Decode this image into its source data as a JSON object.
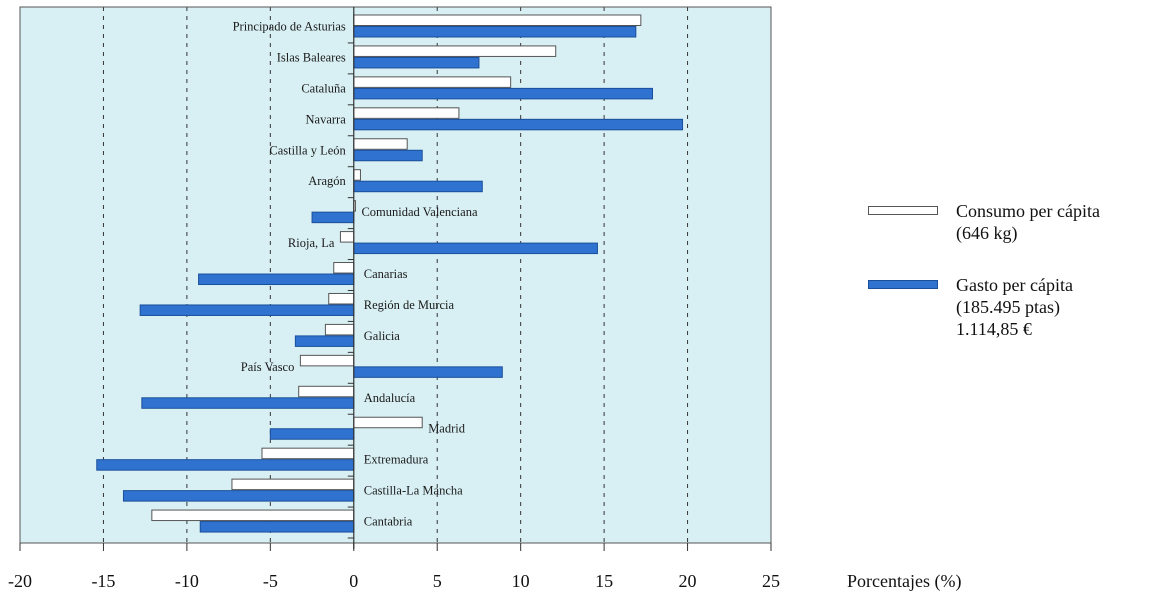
{
  "chart_data": {
    "type": "bar",
    "orientation": "horizontal",
    "categories": [
      "Principado de Asturias",
      "Islas Baleares",
      "Cataluña",
      "Navarra",
      "Castilla y León",
      "Aragón",
      "Comunidad Valenciana",
      "Rioja, La",
      "Canarias",
      "Región de Murcia",
      "Galicia",
      "País Vasco",
      "Andalucía",
      "Madrid",
      "Extremadura",
      "Castilla-La Mancha",
      "Cantabria"
    ],
    "series": [
      {
        "name": "Consumo per cápita (646 kg)",
        "values": [
          17.2,
          12.1,
          9.4,
          6.3,
          3.2,
          0.4,
          0.1,
          -0.8,
          -1.2,
          -1.5,
          -1.7,
          -3.2,
          -3.3,
          4.1,
          -5.5,
          -7.3,
          -12.1
        ]
      },
      {
        "name": "Gasto per cápita (185.495 ptas) 1.114,85 €",
        "values": [
          16.9,
          7.5,
          17.9,
          19.7,
          4.1,
          7.7,
          -2.5,
          14.6,
          -9.3,
          -12.8,
          -3.5,
          8.9,
          -12.7,
          -5.0,
          -15.4,
          -13.8,
          -9.2
        ]
      }
    ],
    "xlim": [
      -20,
      25
    ],
    "xticks": [
      "-20",
      "-15",
      "-10",
      "-5",
      "0",
      "5",
      "10",
      "15",
      "20",
      "25"
    ],
    "xlabel": "Porcentajes (%)",
    "grid": "vertical dashed",
    "legend_position": "right",
    "colors": {
      "background": "#d8f0f4",
      "consumo": "#ffffff",
      "gasto": "#2f72cf",
      "grid": "#333333"
    }
  },
  "legend": {
    "consumo_line1": "Consumo per cápita",
    "consumo_line2": "(646 kg)",
    "gasto_line1": "Gasto per cápita",
    "gasto_line2": "(185.495 ptas)",
    "gasto_line3": "1.114,85 €"
  }
}
